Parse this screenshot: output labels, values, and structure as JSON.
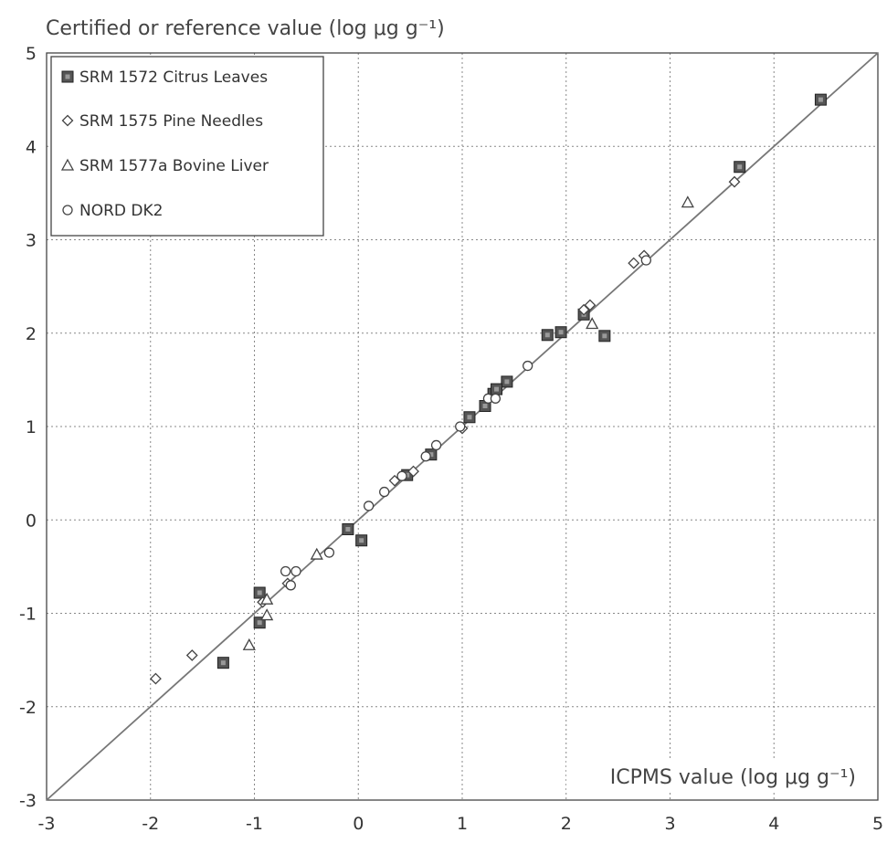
{
  "chart_data": {
    "type": "scatter",
    "ylabel": "Certified or reference value (log μg g⁻¹)",
    "xlabel": "ICPMS value (log μg g⁻¹)",
    "xlim": [
      -3,
      5
    ],
    "ylim": [
      -3,
      5
    ],
    "x_ticks": [
      "-3",
      "-2",
      "-1",
      "0",
      "1",
      "2",
      "3",
      "4",
      "5"
    ],
    "y_ticks": [
      "-3",
      "-2",
      "-1",
      "0",
      "1",
      "2",
      "3",
      "4",
      "5"
    ],
    "grid": true,
    "legend_position": "top-left",
    "reference_line": {
      "type": "y=x"
    },
    "series": [
      {
        "name": "SRM 1572 Citrus Leaves",
        "marker": "square",
        "points": [
          [
            4.45,
            4.5
          ],
          [
            3.67,
            3.78
          ],
          [
            2.37,
            1.97
          ],
          [
            1.82,
            1.98
          ],
          [
            1.95,
            2.01
          ],
          [
            2.17,
            2.2
          ],
          [
            1.43,
            1.48
          ],
          [
            1.3,
            1.35
          ],
          [
            1.33,
            1.4
          ],
          [
            1.22,
            1.22
          ],
          [
            1.07,
            1.1
          ],
          [
            0.7,
            0.7
          ],
          [
            0.47,
            0.48
          ],
          [
            -0.1,
            -0.1
          ],
          [
            0.03,
            -0.22
          ],
          [
            -0.95,
            -0.78
          ],
          [
            -0.95,
            -1.1
          ],
          [
            -1.3,
            -1.53
          ]
        ]
      },
      {
        "name": "SRM 1575 Pine Needles",
        "marker": "diamond",
        "points": [
          [
            3.62,
            3.62
          ],
          [
            2.65,
            2.75
          ],
          [
            2.75,
            2.83
          ],
          [
            2.17,
            2.25
          ],
          [
            2.23,
            2.3
          ],
          [
            1.0,
            0.98
          ],
          [
            0.53,
            0.52
          ],
          [
            0.35,
            0.42
          ],
          [
            -0.68,
            -0.68
          ],
          [
            -0.92,
            -0.88
          ],
          [
            -1.6,
            -1.45
          ],
          [
            -1.95,
            -1.7
          ]
        ]
      },
      {
        "name": "SRM 1577a Bovine Liver",
        "marker": "triangle",
        "points": [
          [
            3.17,
            3.4
          ],
          [
            2.25,
            2.1
          ],
          [
            -0.4,
            -0.37
          ],
          [
            -0.88,
            -0.85
          ],
          [
            -0.88,
            -1.02
          ],
          [
            -1.05,
            -1.34
          ]
        ]
      },
      {
        "name": "NORD DK2",
        "marker": "circle",
        "points": [
          [
            2.77,
            2.78
          ],
          [
            1.63,
            1.65
          ],
          [
            1.25,
            1.3
          ],
          [
            1.32,
            1.3
          ],
          [
            0.98,
            1.0
          ],
          [
            0.75,
            0.8
          ],
          [
            0.65,
            0.68
          ],
          [
            0.42,
            0.47
          ],
          [
            0.25,
            0.3
          ],
          [
            0.1,
            0.15
          ],
          [
            -0.28,
            -0.35
          ],
          [
            -0.6,
            -0.55
          ],
          [
            -0.7,
            -0.55
          ],
          [
            -0.65,
            -0.7
          ]
        ]
      }
    ]
  }
}
